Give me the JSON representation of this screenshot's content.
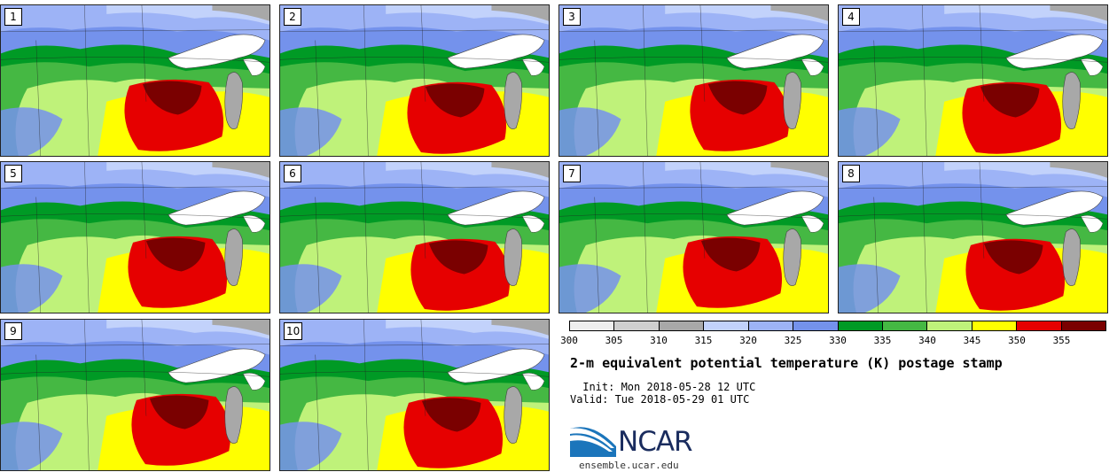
{
  "panels": [
    {
      "label": "1"
    },
    {
      "label": "2"
    },
    {
      "label": "3"
    },
    {
      "label": "4"
    },
    {
      "label": "5"
    },
    {
      "label": "6"
    },
    {
      "label": "7"
    },
    {
      "label": "8"
    },
    {
      "label": "9"
    },
    {
      "label": "10"
    }
  ],
  "colorbar": {
    "colors": [
      "#eeeeee",
      "#cfcfcf",
      "#a8a8a8",
      "#c2d2fb",
      "#9db3f6",
      "#7492ec",
      "#009a25",
      "#45b843",
      "#bff27a",
      "#ffff00",
      "#e60000",
      "#7a0000"
    ],
    "ticks": [
      "300",
      "305",
      "310",
      "315",
      "320",
      "325",
      "330",
      "335",
      "340",
      "345",
      "350",
      "355"
    ]
  },
  "title": "2-m equivalent potential temperature (K) postage stamp",
  "init": " Init: Mon 2018-05-28 12 UTC",
  "valid": "Valid: Tue 2018-05-29 01 UTC",
  "logo": {
    "text": "NCAR",
    "website": "ensemble.ucar.edu"
  }
}
